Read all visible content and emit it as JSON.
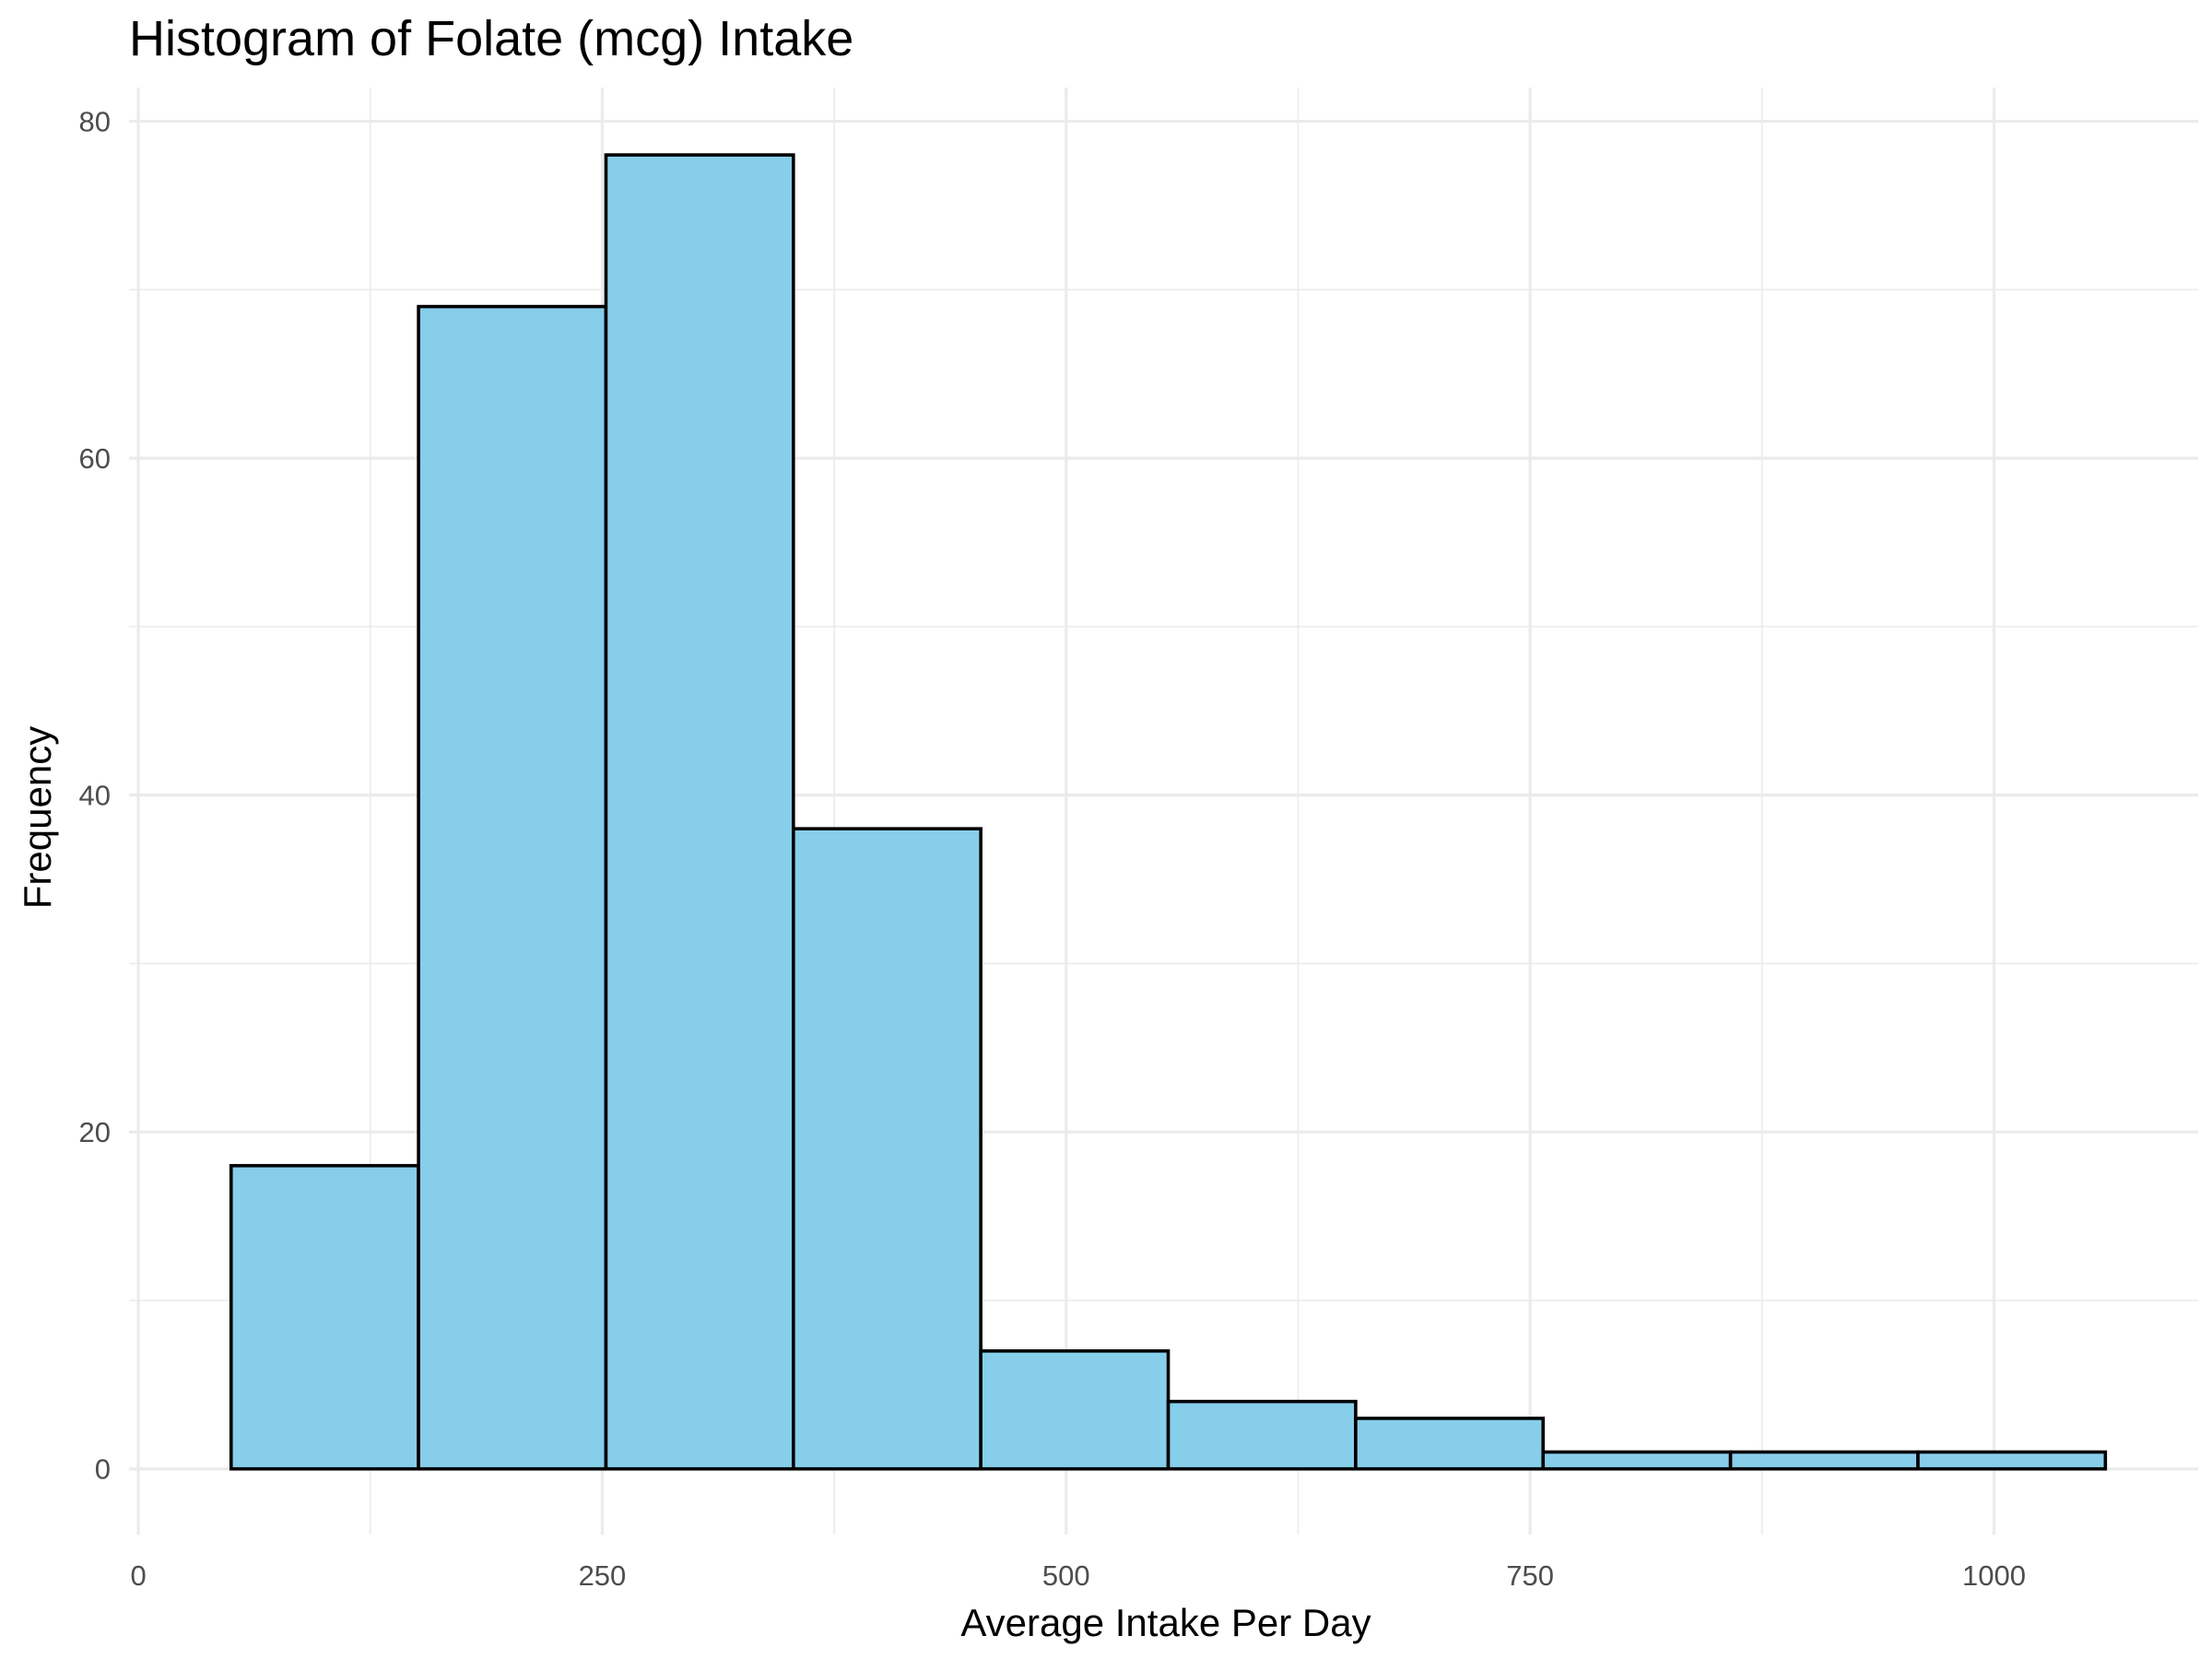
{
  "chart_data": {
    "type": "bar",
    "title": "Histogram of Folate (mcg) Intake",
    "xlabel": "Average Intake Per Day",
    "ylabel": "Frequency",
    "xlim": [
      -5,
      1110
    ],
    "ylim": [
      -3.9,
      82
    ],
    "x_ticks": [
      0,
      250,
      500,
      750,
      1000
    ],
    "x_tick_labels": [
      "0",
      "250",
      "500",
      "750",
      "1000"
    ],
    "y_ticks": [
      0,
      20,
      40,
      60,
      80
    ],
    "y_tick_labels": [
      "0",
      "20",
      "40",
      "60",
      "80"
    ],
    "grid": true,
    "bin_width": 101,
    "bins": [
      {
        "start": 50,
        "end": 151,
        "count": 18
      },
      {
        "start": 151,
        "end": 252,
        "count": 69
      },
      {
        "start": 252,
        "end": 353,
        "count": 78
      },
      {
        "start": 353,
        "end": 454,
        "count": 38
      },
      {
        "start": 454,
        "end": 555,
        "count": 7
      },
      {
        "start": 555,
        "end": 656,
        "count": 4
      },
      {
        "start": 656,
        "end": 757,
        "count": 3
      },
      {
        "start": 757,
        "end": 858,
        "count": 1
      },
      {
        "start": 858,
        "end": 959,
        "count": 1
      },
      {
        "start": 959,
        "end": 1060,
        "count": 1
      }
    ],
    "colors": {
      "bar_fill": "#87ceeb",
      "bar_outline": "#000000",
      "grid": "#ebebeb"
    }
  }
}
